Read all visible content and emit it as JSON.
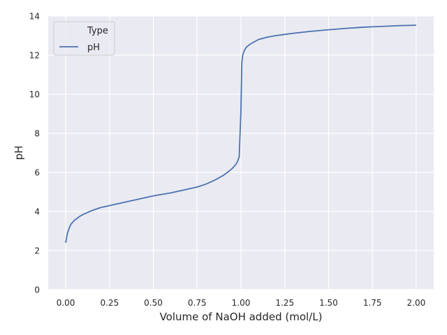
{
  "chart_data": {
    "type": "line",
    "title": "",
    "xlabel": "Volume of NaOH added (mol/L)",
    "ylabel": "pH",
    "xlim": [
      -0.1,
      2.1
    ],
    "ylim": [
      0,
      14
    ],
    "xticks": [
      0.0,
      0.25,
      0.5,
      0.75,
      1.0,
      1.25,
      1.5,
      1.75,
      2.0
    ],
    "xtick_labels": [
      "0.00",
      "0.25",
      "0.50",
      "0.75",
      "1.00",
      "1.25",
      "1.50",
      "1.75",
      "2.00"
    ],
    "yticks": [
      0,
      2,
      4,
      6,
      8,
      10,
      12,
      14
    ],
    "ytick_labels": [
      "0",
      "2",
      "4",
      "6",
      "8",
      "10",
      "12",
      "14"
    ],
    "grid": true,
    "legend": {
      "title": "Type",
      "placement": "top-left",
      "entries": [
        "pH"
      ]
    },
    "series": [
      {
        "name": "pH",
        "color": "#4c72b0",
        "x": [
          0.0,
          0.01,
          0.02,
          0.03,
          0.05,
          0.08,
          0.1,
          0.15,
          0.2,
          0.25,
          0.3,
          0.4,
          0.5,
          0.6,
          0.7,
          0.75,
          0.8,
          0.85,
          0.9,
          0.93,
          0.95,
          0.97,
          0.98,
          0.99,
          1.0,
          1.005,
          1.01,
          1.02,
          1.03,
          1.05,
          1.08,
          1.1,
          1.15,
          1.2,
          1.25,
          1.3,
          1.4,
          1.5,
          1.6,
          1.7,
          1.75,
          1.8,
          1.9,
          2.0
        ],
        "y": [
          2.4,
          2.9,
          3.15,
          3.35,
          3.55,
          3.75,
          3.85,
          4.05,
          4.2,
          4.3,
          4.4,
          4.6,
          4.8,
          4.95,
          5.15,
          5.25,
          5.4,
          5.6,
          5.85,
          6.05,
          6.2,
          6.4,
          6.55,
          6.8,
          9.2,
          11.6,
          12.0,
          12.25,
          12.4,
          12.55,
          12.7,
          12.8,
          12.92,
          13.0,
          13.06,
          13.12,
          13.22,
          13.3,
          13.37,
          13.43,
          13.45,
          13.47,
          13.51,
          13.53
        ]
      }
    ]
  }
}
